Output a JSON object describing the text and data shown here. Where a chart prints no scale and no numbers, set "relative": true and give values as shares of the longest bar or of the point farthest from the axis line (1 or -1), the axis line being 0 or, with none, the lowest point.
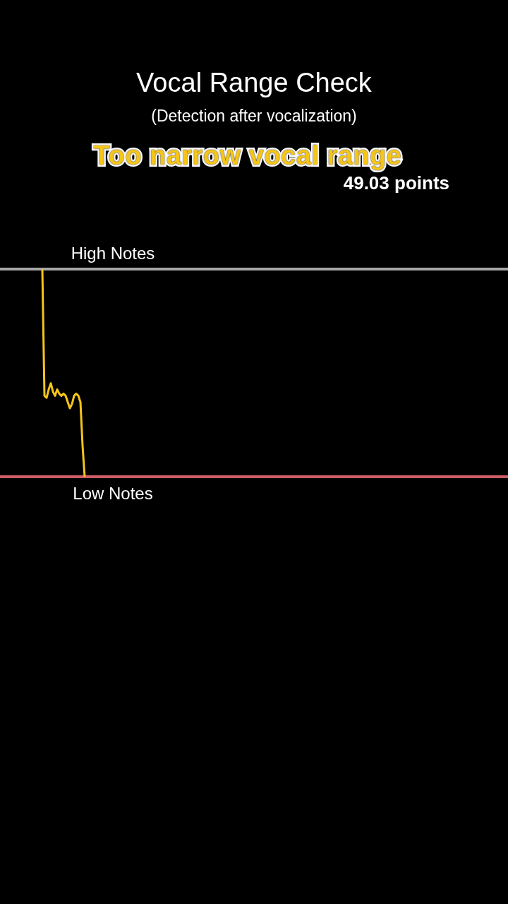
{
  "chart_data": {
    "type": "line",
    "title": "Vocal Range Check",
    "subtitle": "(Detection after vocalization)",
    "annotations": [
      "Too narrow vocal range",
      "49.03 points"
    ],
    "relative": true,
    "categories": [
      null,
      null,
      null,
      null,
      null,
      null,
      null,
      null,
      null,
      null,
      null,
      null,
      null,
      null,
      null,
      null,
      null,
      null,
      null,
      null,
      null,
      null,
      null,
      null,
      null,
      null,
      null,
      null,
      null,
      null,
      null,
      null,
      null,
      null,
      null,
      null,
      null,
      null,
      null,
      null,
      null,
      null,
      null,
      null,
      null,
      null,
      null,
      null,
      null,
      null,
      null,
      null,
      null,
      null,
      null,
      null,
      null,
      null,
      null,
      null,
      null,
      null,
      null,
      null,
      null,
      null,
      null,
      null,
      null,
      null,
      null,
      null,
      null,
      null,
      null,
      null,
      null,
      null,
      null,
      null,
      null,
      null,
      null,
      null,
      null,
      null,
      null,
      null,
      null,
      null,
      null,
      null,
      null,
      null,
      null,
      null,
      null,
      null,
      null,
      null,
      null,
      null,
      null,
      null,
      null,
      null,
      null,
      null,
      null,
      null,
      null,
      null,
      null,
      null,
      null,
      null,
      null,
      null,
      null,
      null,
      null,
      null,
      null,
      null,
      null,
      null,
      null,
      null,
      null,
      null,
      null,
      null,
      null,
      null,
      null,
      null,
      null,
      null,
      null,
      null,
      null,
      null,
      null,
      null,
      null,
      null,
      null,
      null,
      null,
      null,
      null,
      null,
      null,
      null,
      null,
      null,
      null,
      null,
      null,
      null,
      null,
      null,
      null,
      null,
      null,
      null,
      null,
      null,
      null,
      null,
      null,
      null,
      null,
      null,
      null,
      null,
      null,
      null,
      null,
      null,
      null,
      null,
      null,
      null,
      null,
      null,
      null,
      null,
      null,
      null,
      null,
      null,
      null,
      null,
      null,
      null,
      null,
      null,
      null,
      null,
      null,
      null,
      null,
      null,
      null,
      null,
      null,
      null,
      null,
      null,
      null,
      null,
      null,
      null,
      null,
      null,
      null,
      null,
      null,
      null,
      null,
      null,
      null,
      null,
      null,
      null,
      null,
      null,
      null,
      null,
      null,
      null,
      null,
      null,
      null,
      null,
      null,
      null,
      null,
      null,
      null
    ],
    "values": [
      null,
      null,
      null,
      null,
      null,
      null,
      null,
      null,
      null,
      null,
      null,
      null,
      null,
      null,
      null,
      null,
      null,
      null,
      null,
      null,
      1,
      0.39,
      0.38,
      0.42,
      0.45,
      0.41,
      0.39,
      0.42,
      0.4,
      0.39,
      0.4,
      0.39,
      0.36,
      0.33,
      0.35,
      0.39,
      0.4,
      0.39,
      0.36,
      0.15,
      0,
      null,
      null,
      null,
      null,
      null,
      null,
      null,
      null,
      null,
      null,
      null,
      null,
      null,
      null,
      null,
      null,
      null,
      null,
      null,
      null,
      null,
      null,
      null,
      null,
      null,
      null,
      null,
      null,
      null,
      null,
      null,
      null,
      null,
      null,
      null,
      null,
      null,
      null,
      null,
      null,
      null,
      null,
      null,
      null,
      null,
      null,
      null,
      null,
      null,
      null,
      null,
      null,
      null,
      null,
      null,
      null,
      null,
      null,
      null,
      null,
      null,
      null,
      null,
      null,
      null,
      null,
      null,
      null,
      null,
      null,
      null,
      null,
      null,
      null,
      null,
      null,
      null,
      null,
      null,
      null,
      null,
      null,
      null,
      null,
      null,
      null,
      null,
      null,
      null,
      null,
      null,
      null,
      null,
      null,
      null,
      null,
      null,
      null,
      null,
      null,
      null,
      null,
      null,
      null,
      null,
      null,
      null,
      null,
      null,
      null,
      null,
      null,
      null,
      null,
      null,
      null,
      null,
      null,
      null,
      null,
      null,
      null,
      null,
      null,
      null,
      null,
      null,
      null,
      null,
      null,
      null,
      null,
      null,
      null,
      null,
      null,
      null,
      null,
      null,
      null,
      null,
      null,
      null,
      null,
      null,
      null,
      null,
      null,
      null,
      null,
      null,
      null,
      null,
      null,
      null,
      null,
      null,
      null,
      null,
      null,
      null,
      null,
      null,
      null,
      null,
      null,
      null,
      null,
      null,
      null,
      null,
      null,
      null,
      null,
      null,
      null,
      null,
      null,
      null,
      null,
      null,
      null,
      null,
      null,
      null,
      null,
      null,
      null,
      null,
      null,
      null,
      null,
      null,
      null,
      null,
      null,
      null,
      null,
      null,
      null
    ],
    "color": "#f5c518",
    "line_style": "solid",
    "ref_lines": [
      {
        "axis": "y",
        "value": 1,
        "label": "High Notes",
        "color": "#a6a6a6"
      },
      {
        "axis": "y",
        "value": 0,
        "label": "Low Notes",
        "color": "#cd5c64"
      }
    ]
  }
}
